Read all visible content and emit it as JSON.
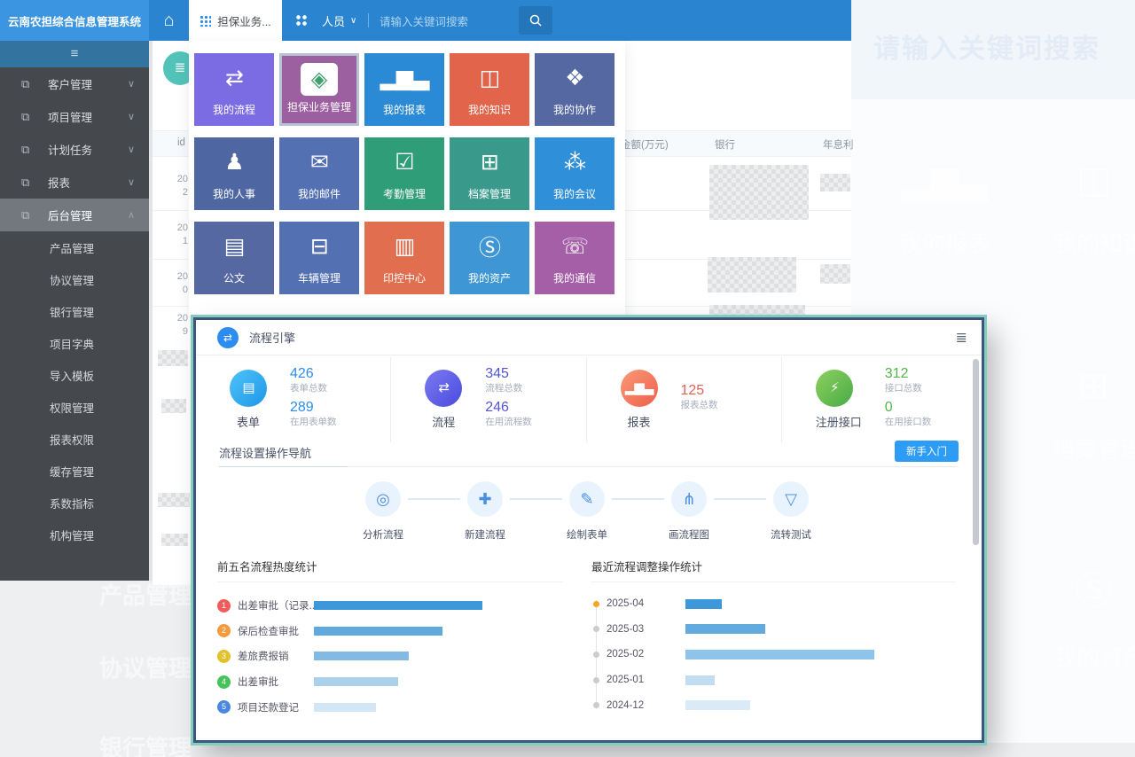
{
  "app_title": "云南农担综合信息管理系统",
  "topbar": {
    "tab_label": "担保业务...",
    "people_label": "人员",
    "chevron": "∨",
    "search_placeholder": "请输入关键词搜索"
  },
  "sidebar": {
    "toggle_icon": "≡",
    "menu": [
      {
        "label": "客户管理",
        "state": "collapsed"
      },
      {
        "label": "项目管理",
        "state": "collapsed"
      },
      {
        "label": "计划任务",
        "state": "collapsed"
      },
      {
        "label": "报表",
        "state": "collapsed"
      },
      {
        "label": "后台管理",
        "state": "expanded",
        "active": true
      }
    ],
    "submenu": [
      "产品管理",
      "协议管理",
      "银行管理",
      "项目字典",
      "导入模板",
      "权限管理",
      "报表权限",
      "缓存管理",
      "系数指标",
      "机构管理"
    ]
  },
  "launcher": {
    "tiles": [
      {
        "label": "我的流程",
        "color": "#7c6ce4",
        "icon": "⇄"
      },
      {
        "label": "担保业务管理",
        "color": "#9c5fa0",
        "icon": "◈",
        "selected": true,
        "logo_box": true
      },
      {
        "label": "我的报表",
        "color": "#2b8ad6",
        "icon": "▂▆▃"
      },
      {
        "label": "我的知识",
        "color": "#e2644a",
        "icon": "◫"
      },
      {
        "label": "我的协作",
        "color": "#5568a2",
        "icon": "❖"
      },
      {
        "label": "我的人事",
        "color": "#4e67a2",
        "icon": "♟"
      },
      {
        "label": "我的邮件",
        "color": "#5370b2",
        "icon": "✉"
      },
      {
        "label": "考勤管理",
        "color": "#2f9e78",
        "icon": "☑"
      },
      {
        "label": "档案管理",
        "color": "#399a8c",
        "icon": "⊞"
      },
      {
        "label": "我的会议",
        "color": "#2f8fd9",
        "icon": "⁂"
      },
      {
        "label": "公文",
        "color": "#5568a2",
        "icon": "▤"
      },
      {
        "label": "车辆管理",
        "color": "#5370b2",
        "icon": "⊟"
      },
      {
        "label": "印控中心",
        "color": "#e26e50",
        "icon": "▥"
      },
      {
        "label": "我的资产",
        "color": "#3f96d5",
        "icon": "Ⓢ"
      },
      {
        "label": "我的通信",
        "color": "#a55fa7",
        "icon": "☏"
      }
    ]
  },
  "bg_page": {
    "header_icon": "≣",
    "table_headers": [
      "id",
      "金额(万元)",
      "银行",
      "年息利"
    ],
    "row_ids": [
      "20\n2",
      "20\n1",
      "20\n0",
      "20\n9"
    ]
  },
  "ghost": {
    "search_text": "请输入关键词搜索",
    "big_texts": [
      "产品管理",
      "协议管理",
      "银行管理"
    ],
    "tiles": [
      {
        "label": "我的报表",
        "color": "#edf4fc",
        "icon": "▂▆▃"
      },
      {
        "label": "我的知识",
        "color": "#fdf1ec",
        "icon": "◫"
      },
      {
        "label": "考勤管理",
        "color": "#f0f7f4",
        "icon": "☑"
      },
      {
        "label": "档案管理",
        "color": "#e9f4f1",
        "icon": "⊞"
      },
      {
        "label": "印控中心",
        "color": "#fdf0ec",
        "icon": "▥"
      },
      {
        "label": "我的资产",
        "color": "#ecf2fa",
        "icon": "Ⓢ"
      }
    ]
  },
  "modal": {
    "title": "流程引擎",
    "header_icon": "⇄",
    "menu_icon": "≣",
    "stats": [
      {
        "label": "表单",
        "icon": "▤",
        "c1": "#4fc3f7",
        "c2": "#1e96e8",
        "accent": "#2d8cf0",
        "metrics": [
          {
            "value": "426",
            "caption": "表单总数"
          },
          {
            "value": "289",
            "caption": "在用表单数"
          }
        ]
      },
      {
        "label": "流程",
        "icon": "⇄",
        "c1": "#7b7bf0",
        "c2": "#4a4ae0",
        "accent": "#5355d8",
        "metrics": [
          {
            "value": "345",
            "caption": "流程总数"
          },
          {
            "value": "246",
            "caption": "在用流程数"
          }
        ]
      },
      {
        "label": "报表",
        "icon": "▂▆▃",
        "c1": "#f99a76",
        "c2": "#ef5f4b",
        "accent": "#e65f55",
        "metrics": [
          {
            "value": "125",
            "caption": "报表总数"
          }
        ]
      },
      {
        "label": "注册接口",
        "icon": "⚡",
        "c1": "#8ed05e",
        "c2": "#47ab47",
        "accent": "#52b54b",
        "metrics": [
          {
            "value": "312",
            "caption": "接口总数"
          },
          {
            "value": "0",
            "caption": "在用接口数"
          }
        ]
      }
    ],
    "nav": {
      "title": "流程设置操作导航",
      "button_label": "新手入门",
      "steps": [
        {
          "label": "分析流程",
          "icon": "◎"
        },
        {
          "label": "新建流程",
          "icon": "✚"
        },
        {
          "label": "绘制表单",
          "icon": "✎"
        },
        {
          "label": "画流程图",
          "icon": "⋔"
        },
        {
          "label": "流转测试",
          "icon": "▽"
        }
      ]
    }
  },
  "chart_data": [
    {
      "type": "bar",
      "orientation": "horizontal",
      "title": "前五名流程热度统计",
      "categories": [
        "出差审批（记录...",
        "保后检查审批",
        "差旅费报销",
        "出差审批",
        "项目还款登记"
      ],
      "values": [
        190,
        145,
        107,
        95,
        70
      ],
      "units": "relative-length-px",
      "rank_colors": [
        "#f05b5b",
        "#f59a3d",
        "#e2c12c",
        "#46c25a",
        "#4a88e0"
      ],
      "bar_colors": [
        "#3e97d9",
        "#5fa9de",
        "#82bae4",
        "#abd0ec",
        "#d3e6f5"
      ],
      "legend_position": "left",
      "grid": false
    },
    {
      "type": "bar",
      "orientation": "horizontal",
      "title": "最近流程调整操作统计",
      "categories": [
        "2025-04",
        "2025-03",
        "2025-02",
        "2025-01",
        "2024-12"
      ],
      "values": [
        41,
        90,
        213,
        33,
        73
      ],
      "units": "relative-length-px",
      "dot_colors": [
        "#f5a623",
        "#cccccc",
        "#cccccc",
        "#cccccc",
        "#cccccc"
      ],
      "bar_colors": [
        "#3e97d9",
        "#62abdf",
        "#8ec4e9",
        "#c2dcf2",
        "#dbeaf7"
      ],
      "legend_position": "left",
      "grid": false
    }
  ]
}
